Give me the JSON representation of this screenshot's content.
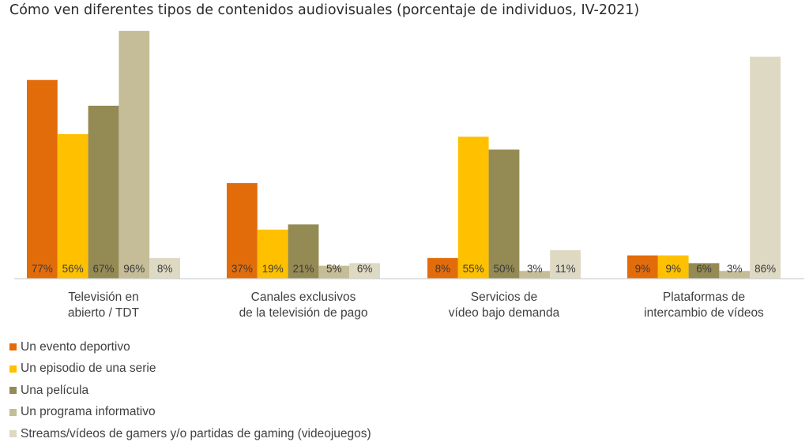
{
  "chart_data": {
    "type": "bar",
    "title": "Cómo ven diferentes tipos de contenidos audiovisuales (porcentaje de individuos, IV-2021)",
    "categories": [
      [
        "Televisión en",
        "abierto / TDT"
      ],
      [
        "Canales exclusivos",
        "de la televisión de pago"
      ],
      [
        "Servicios de",
        "vídeo bajo demanda"
      ],
      [
        "Plataformas de",
        "intercambio de vídeos"
      ]
    ],
    "series": [
      {
        "name": "Un evento deportivo",
        "color": "#e36c0a",
        "values": [
          77,
          37,
          8,
          9
        ],
        "labels": [
          "77%",
          "37%",
          "8%",
          "9%"
        ]
      },
      {
        "name": "Un episodio de una serie",
        "color": "#ffc000",
        "values": [
          56,
          19,
          55,
          9
        ],
        "labels": [
          "56%",
          "19%",
          "55%",
          "9%"
        ]
      },
      {
        "name": "Una película",
        "color": "#948a54",
        "values": [
          67,
          21,
          50,
          6
        ],
        "labels": [
          "67%",
          "21%",
          "50%",
          "6%"
        ]
      },
      {
        "name": "Un programa informativo",
        "color": "#c4bd97",
        "values": [
          96,
          5,
          3,
          3
        ],
        "labels": [
          "96%",
          "5%",
          "3%",
          "3%"
        ]
      },
      {
        "name": "Streams/vídeos de gamers y/o partidas de gaming (videojuegos)",
        "color": "#ddd9c3",
        "values": [
          8,
          6,
          11,
          86
        ],
        "labels": [
          "8%",
          "6%",
          "11%",
          "86%"
        ]
      }
    ],
    "ylim": [
      0,
      100
    ],
    "grid": false,
    "legend_position": "bottom-left"
  }
}
